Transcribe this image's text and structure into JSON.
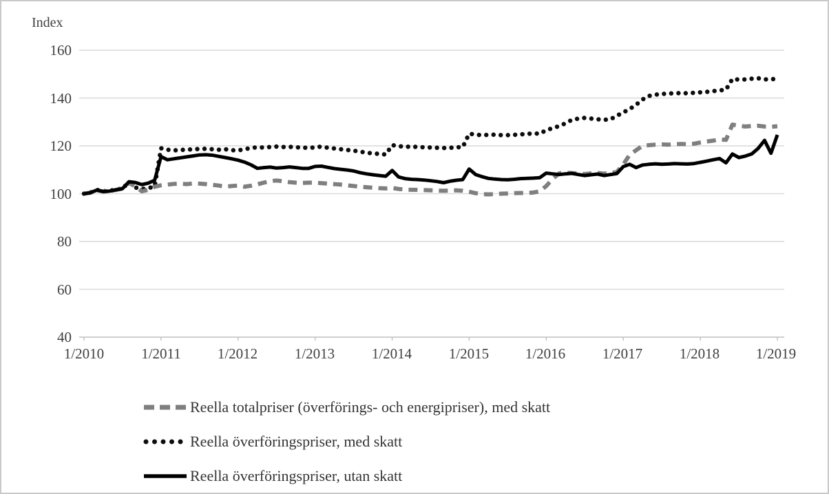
{
  "chart_data": {
    "type": "line",
    "title": "",
    "ylabel": "Index",
    "xlabel": "",
    "grid": true,
    "legend_position": "bottom-left",
    "ylim": [
      40,
      160
    ],
    "y_tick_labels": [
      "160",
      "140",
      "120",
      "100",
      "80",
      "60",
      "40"
    ],
    "x_tick_labels": [
      "1/2010",
      "1/2011",
      "1/2012",
      "1/2013",
      "1/2014",
      "1/2015",
      "1/2016",
      "1/2017",
      "1/2018",
      "1/2019"
    ],
    "x_start": "1/2010",
    "x_end": "1/2019",
    "x_frequency": "monthly",
    "series": [
      {
        "name": "Reella totalpriser (överförings- och energipriser), med skatt",
        "style": "dashed",
        "color": "#7f7f7f",
        "values": [
          100.0,
          100.4,
          101.5,
          100.9,
          101.1,
          101.6,
          102.1,
          104.6,
          103.0,
          101.0,
          101.6,
          102.9,
          103.5,
          103.8,
          104.1,
          104.2,
          104.0,
          104.3,
          104.2,
          104.0,
          103.7,
          103.4,
          102.9,
          103.2,
          103.4,
          102.9,
          103.3,
          103.9,
          104.6,
          105.3,
          105.5,
          105.2,
          104.8,
          104.6,
          104.5,
          104.6,
          104.6,
          104.4,
          104.2,
          104.0,
          103.8,
          103.5,
          103.2,
          102.9,
          102.7,
          102.5,
          102.3,
          102.2,
          102.4,
          102.0,
          101.7,
          101.6,
          101.6,
          101.5,
          101.4,
          101.3,
          101.2,
          101.3,
          101.4,
          101.2,
          100.8,
          100.2,
          99.8,
          99.7,
          99.8,
          100.0,
          100.1,
          100.2,
          100.3,
          100.3,
          100.5,
          101.0,
          103.2,
          106.2,
          108.5,
          108.8,
          108.6,
          108.4,
          108.2,
          108.5,
          108.7,
          108.4,
          108.7,
          109.1,
          112.2,
          116.3,
          118.2,
          120.0,
          120.3,
          120.5,
          120.6,
          120.5,
          120.7,
          120.8,
          120.7,
          120.9,
          121.4,
          121.8,
          122.2,
          122.7,
          122.5,
          128.9,
          128.4,
          128.1,
          128.3,
          128.4,
          128.1,
          128.0,
          128.2
        ]
      },
      {
        "name": "Reella överföringspriser, med skatt",
        "style": "dotted",
        "color": "#0d0d0d",
        "values": [
          100.0,
          100.5,
          101.6,
          101.0,
          101.2,
          101.7,
          102.2,
          104.8,
          102.6,
          102.0,
          102.3,
          103.0,
          119.0,
          118.4,
          118.1,
          118.3,
          118.4,
          118.6,
          118.7,
          118.8,
          118.6,
          118.4,
          118.6,
          118.2,
          118.1,
          118.6,
          119.1,
          119.4,
          119.3,
          119.5,
          119.7,
          119.5,
          119.6,
          119.4,
          119.3,
          119.1,
          119.4,
          119.7,
          119.2,
          118.9,
          118.6,
          118.3,
          118.0,
          117.6,
          117.1,
          116.9,
          116.6,
          116.4,
          120.3,
          119.9,
          119.6,
          119.7,
          119.5,
          119.4,
          119.3,
          119.2,
          119.1,
          119.2,
          119.4,
          119.5,
          125.1,
          124.7,
          124.5,
          124.6,
          124.7,
          124.5,
          124.5,
          124.6,
          124.8,
          125.0,
          125.2,
          125.1,
          126.6,
          127.4,
          128.3,
          129.4,
          130.9,
          131.4,
          131.7,
          131.4,
          131.1,
          130.9,
          131.1,
          132.6,
          134.0,
          135.4,
          137.2,
          139.4,
          140.9,
          141.4,
          141.7,
          141.9,
          142.0,
          142.1,
          142.0,
          142.2,
          142.4,
          142.6,
          142.9,
          143.2,
          143.5,
          148.0,
          147.7,
          147.8,
          148.1,
          148.3,
          147.8,
          147.9,
          148.0
        ]
      },
      {
        "name": "Reella överföringspriser, utan skatt",
        "style": "solid",
        "color": "#000000",
        "values": [
          100.0,
          100.4,
          101.5,
          100.9,
          101.1,
          101.6,
          102.1,
          105.0,
          104.7,
          103.8,
          104.4,
          105.6,
          115.5,
          114.2,
          114.6,
          115.0,
          115.4,
          115.8,
          116.2,
          116.3,
          116.1,
          115.6,
          115.1,
          114.6,
          114.0,
          113.2,
          112.1,
          110.6,
          110.9,
          111.1,
          110.7,
          110.9,
          111.2,
          110.9,
          110.6,
          110.6,
          111.4,
          111.5,
          111.0,
          110.5,
          110.2,
          109.9,
          109.5,
          108.8,
          108.3,
          107.9,
          107.6,
          107.3,
          109.7,
          107.0,
          106.3,
          106.0,
          105.9,
          105.7,
          105.4,
          105.1,
          104.6,
          105.2,
          105.6,
          105.9,
          110.3,
          108.0,
          107.1,
          106.4,
          106.1,
          105.9,
          105.8,
          106.0,
          106.3,
          106.4,
          106.5,
          106.7,
          108.6,
          108.3,
          108.0,
          108.3,
          108.5,
          108.0,
          107.6,
          107.9,
          108.2,
          107.6,
          108.0,
          108.4,
          111.3,
          112.3,
          110.9,
          112.0,
          112.3,
          112.5,
          112.3,
          112.4,
          112.6,
          112.5,
          112.4,
          112.6,
          113.1,
          113.6,
          114.2,
          114.7,
          112.9,
          116.6,
          115.1,
          115.7,
          116.6,
          118.9,
          122.3,
          116.9,
          124.6
        ]
      }
    ],
    "colors": {
      "gridline": "#d9d9d9",
      "axis": "#bfbfbf",
      "tick_text": "#404040",
      "legend_text": "#333333"
    }
  }
}
